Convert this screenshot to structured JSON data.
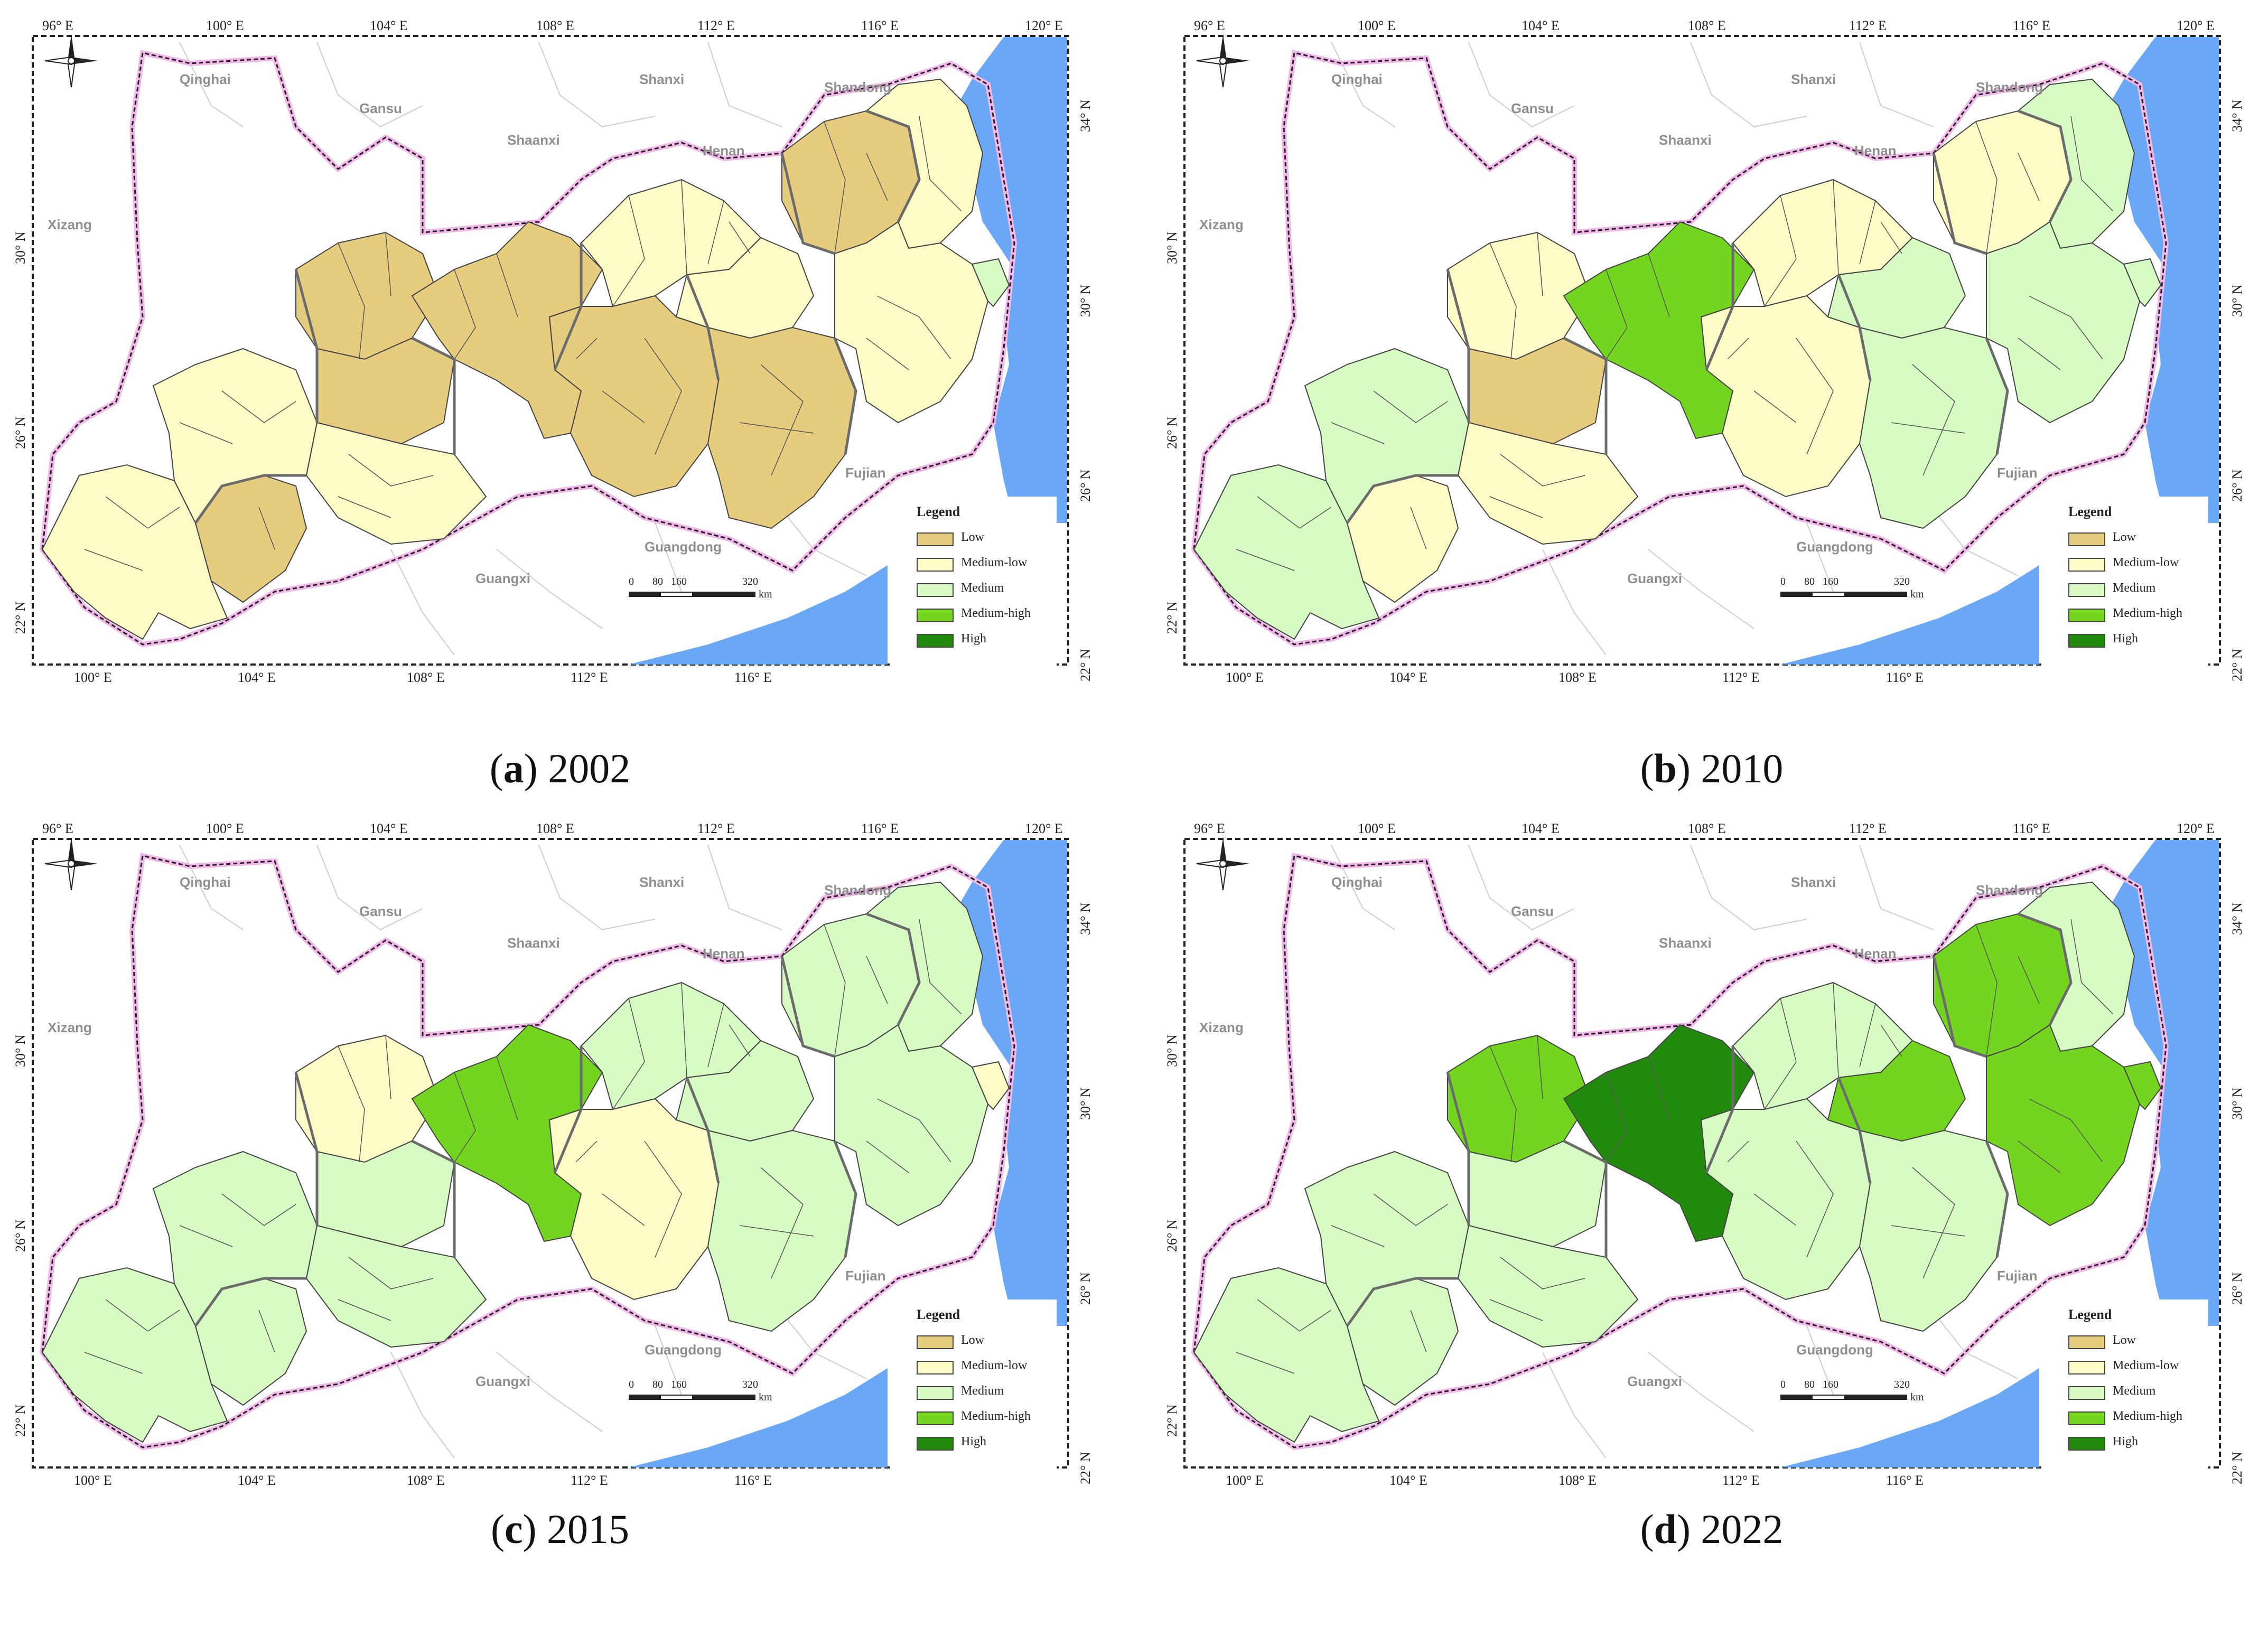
{
  "panels": [
    {
      "letter": "a",
      "year": "2002",
      "variant": "p2002"
    },
    {
      "letter": "b",
      "year": "2010",
      "variant": "p2010"
    },
    {
      "letter": "c",
      "year": "2015",
      "variant": "p2015"
    },
    {
      "letter": "d",
      "year": "2022",
      "variant": "p2022"
    }
  ],
  "legend": {
    "title": "Legend",
    "classes": [
      {
        "label": "Low",
        "color": "#e6cc7e"
      },
      {
        "label": "Medium-low",
        "color": "#fdfbc6"
      },
      {
        "label": "Medium",
        "color": "#d6fbc3"
      },
      {
        "label": "Medium-high",
        "color": "#74d520"
      },
      {
        "label": "High",
        "color": "#218a0c"
      }
    ]
  },
  "scale": {
    "labels": [
      "0",
      "80",
      "160",
      "320"
    ],
    "unit": "km"
  },
  "top_ticks": [
    "96° E",
    "100° E",
    "104° E",
    "108° E",
    "112° E",
    "116° E",
    "120° E"
  ],
  "bottom_ticks": [
    "100° E",
    "104° E",
    "108° E",
    "112° E",
    "116° E",
    "120° E"
  ],
  "left_ticks": [
    "30° N",
    "26° N",
    "22° N"
  ],
  "right_ticks": [
    "34° N",
    "30° N",
    "26° N",
    "22° N"
  ],
  "provinces": [
    "Qinghai",
    "Gansu",
    "Shanxi",
    "Shandong",
    "Shaanxi",
    "Henan",
    "Xizang",
    "Fujian",
    "Guangdong",
    "Guangxi"
  ],
  "colors": {
    "sea": "#6aa8f6",
    "outline": "#333333",
    "pink_border": "#f3b8ea",
    "outside": "#ffffff"
  }
}
